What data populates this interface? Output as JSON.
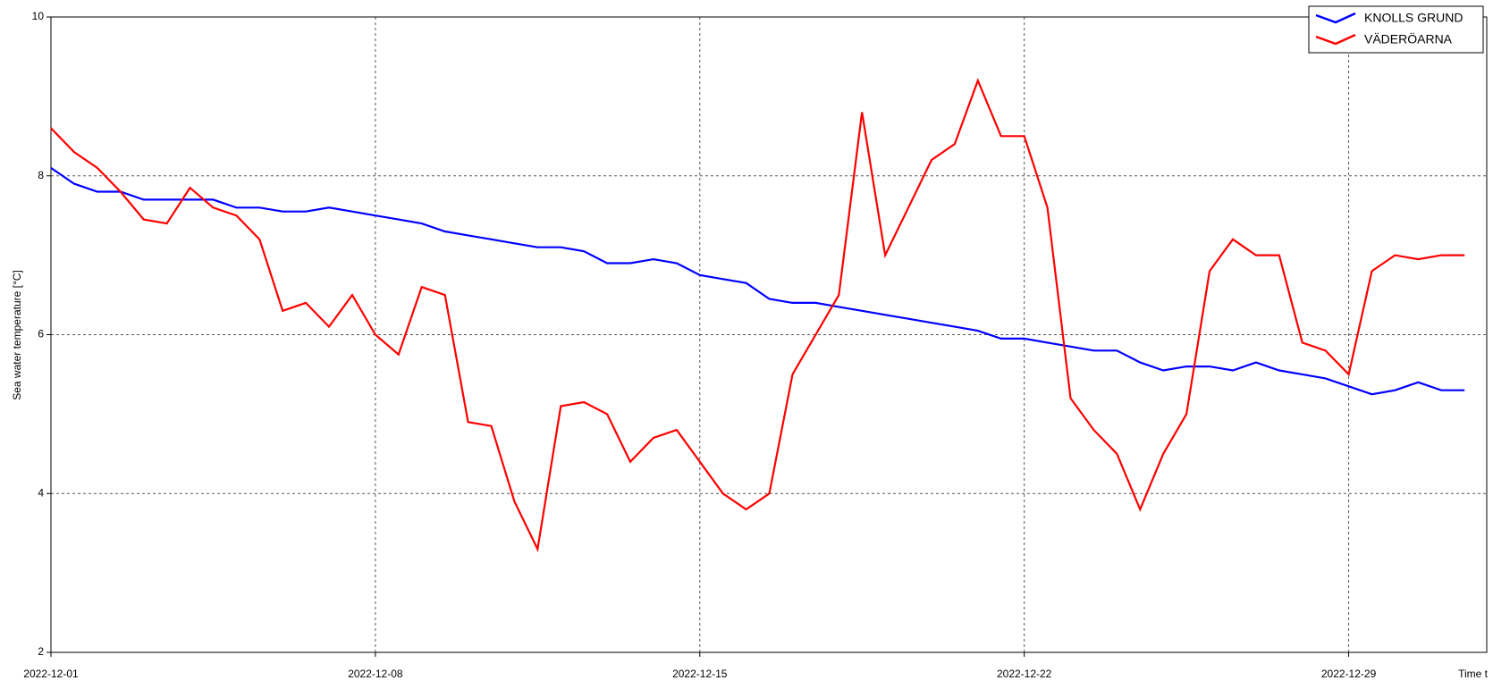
{
  "chart_data": {
    "type": "line",
    "y_label": "Sea water temperature [°C]",
    "x_label": "Time t",
    "x": [
      "2022-12-01 00:00",
      "2022-12-01 12:00",
      "2022-12-02 00:00",
      "2022-12-02 12:00",
      "2022-12-03 00:00",
      "2022-12-03 12:00",
      "2022-12-04 00:00",
      "2022-12-04 12:00",
      "2022-12-05 00:00",
      "2022-12-05 12:00",
      "2022-12-06 00:00",
      "2022-12-06 12:00",
      "2022-12-07 00:00",
      "2022-12-07 12:00",
      "2022-12-08 00:00",
      "2022-12-08 12:00",
      "2022-12-09 00:00",
      "2022-12-09 12:00",
      "2022-12-10 00:00",
      "2022-12-10 12:00",
      "2022-12-11 00:00",
      "2022-12-11 12:00",
      "2022-12-12 00:00",
      "2022-12-12 12:00",
      "2022-12-13 00:00",
      "2022-12-13 12:00",
      "2022-12-14 00:00",
      "2022-12-14 12:00",
      "2022-12-15 00:00",
      "2022-12-15 12:00",
      "2022-12-16 00:00",
      "2022-12-16 12:00",
      "2022-12-17 00:00",
      "2022-12-17 12:00",
      "2022-12-18 00:00",
      "2022-12-18 12:00",
      "2022-12-19 00:00",
      "2022-12-19 12:00",
      "2022-12-20 00:00",
      "2022-12-20 12:00",
      "2022-12-21 00:00",
      "2022-12-21 12:00",
      "2022-12-22 00:00",
      "2022-12-22 12:00",
      "2022-12-23 00:00",
      "2022-12-23 12:00",
      "2022-12-24 00:00",
      "2022-12-24 12:00",
      "2022-12-25 00:00",
      "2022-12-25 12:00",
      "2022-12-26 00:00",
      "2022-12-26 12:00",
      "2022-12-27 00:00",
      "2022-12-27 12:00",
      "2022-12-28 00:00",
      "2022-12-28 12:00",
      "2022-12-29 00:00",
      "2022-12-29 12:00",
      "2022-12-30 00:00",
      "2022-12-30 12:00",
      "2022-12-31 00:00",
      "2022-12-31 12:00"
    ],
    "series": [
      {
        "name": "KNOLLS GRUND",
        "color": "#0000ff",
        "values": [
          8.1,
          7.9,
          7.8,
          7.8,
          7.7,
          7.7,
          7.7,
          7.7,
          7.6,
          7.6,
          7.55,
          7.55,
          7.6,
          7.55,
          7.5,
          7.45,
          7.4,
          7.3,
          7.25,
          7.2,
          7.15,
          7.1,
          7.1,
          7.05,
          6.9,
          6.9,
          6.95,
          6.9,
          6.75,
          6.7,
          6.65,
          6.45,
          6.4,
          6.4,
          6.35,
          6.3,
          6.25,
          6.2,
          6.15,
          6.1,
          6.05,
          5.95,
          5.95,
          5.9,
          5.85,
          5.8,
          5.8,
          5.65,
          5.55,
          5.6,
          5.6,
          5.55,
          5.65,
          5.55,
          5.5,
          5.45,
          5.35,
          5.25,
          5.3,
          5.4,
          5.3,
          5.3
        ]
      },
      {
        "name": "VÄDERÖARNA",
        "color": "#ff0000",
        "values": [
          8.6,
          8.3,
          8.1,
          7.8,
          7.45,
          7.4,
          7.85,
          7.6,
          7.5,
          7.2,
          6.3,
          6.4,
          6.1,
          6.5,
          6.0,
          5.75,
          6.6,
          6.5,
          4.9,
          4.85,
          3.9,
          3.3,
          5.1,
          5.15,
          5.0,
          4.4,
          4.7,
          4.8,
          4.4,
          4.0,
          3.8,
          4.0,
          5.5,
          6.0,
          6.5,
          8.8,
          7.0,
          7.6,
          8.2,
          8.4,
          9.2,
          8.5,
          8.5,
          7.6,
          5.2,
          4.8,
          4.5,
          3.8,
          4.5,
          5.0,
          6.8,
          7.2,
          7.0,
          7.0,
          5.9,
          5.8,
          5.5,
          6.8,
          7.0,
          6.95,
          7.0,
          7.0
        ]
      }
    ],
    "xlim": [
      "2022-12-01 00:00",
      "2022-12-31 23:30"
    ],
    "xticks": [
      "2022-12-01",
      "2022-12-08",
      "2022-12-15",
      "2022-12-22",
      "2022-12-29"
    ],
    "ylim": [
      2,
      10
    ],
    "yticks": [
      2,
      4,
      6,
      8,
      10
    ],
    "grid": true,
    "legend": "upper right"
  }
}
